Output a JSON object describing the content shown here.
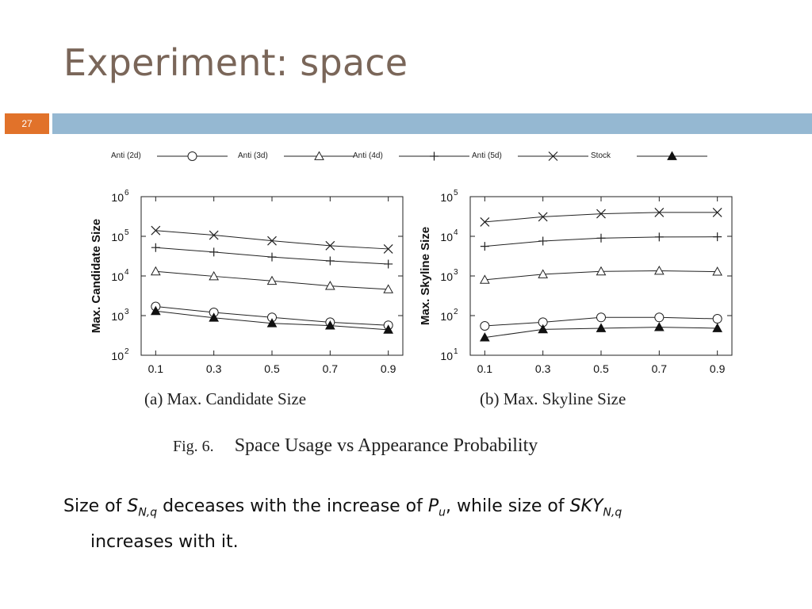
{
  "slide": {
    "title": "Experiment: space",
    "page_number": "27"
  },
  "legend": [
    {
      "name": "Anti (2d)",
      "marker": "circle"
    },
    {
      "name": "Anti (3d)",
      "marker": "triangle"
    },
    {
      "name": "Anti (4d)",
      "marker": "plus"
    },
    {
      "name": "Anti (5d)",
      "marker": "cross"
    },
    {
      "name": "Stock",
      "marker": "filled-triangle"
    }
  ],
  "chart_data": [
    {
      "type": "line",
      "caption": "(a) Max. Candidate Size",
      "ylabel": "Max. Candidate Size",
      "xlabel": "",
      "y_scale": "log",
      "ylim": [
        100,
        1000000
      ],
      "y_ticks": [
        "10^2",
        "10^3",
        "10^4",
        "10^5",
        "10^6"
      ],
      "x": [
        0.1,
        0.3,
        0.5,
        0.7,
        0.9
      ],
      "x_tick_labels": [
        "0.1",
        "0.3",
        "0.5",
        "0.7",
        "0.9"
      ],
      "series": [
        {
          "name": "Anti (2d)",
          "values": [
            1700,
            1200,
            900,
            680,
            570
          ]
        },
        {
          "name": "Anti (3d)",
          "values": [
            13000,
            9800,
            7500,
            5600,
            4600
          ]
        },
        {
          "name": "Anti (4d)",
          "values": [
            52000,
            40000,
            30000,
            24000,
            20000
          ]
        },
        {
          "name": "Anti (5d)",
          "values": [
            140000,
            107000,
            77000,
            58000,
            48000
          ]
        },
        {
          "name": "Stock",
          "values": [
            1300,
            880,
            640,
            560,
            440
          ]
        }
      ]
    },
    {
      "type": "line",
      "caption": "(b) Max. Skyline Size",
      "ylabel": "Max. Skyline Size",
      "xlabel": "",
      "y_scale": "log",
      "ylim": [
        10,
        100000
      ],
      "y_ticks": [
        "10^1",
        "10^2",
        "10^3",
        "10^4",
        "10^5"
      ],
      "x": [
        0.1,
        0.3,
        0.5,
        0.7,
        0.9
      ],
      "x_tick_labels": [
        "0.1",
        "0.3",
        "0.5",
        "0.7",
        "0.9"
      ],
      "series": [
        {
          "name": "Anti (2d)",
          "values": [
            55,
            68,
            90,
            90,
            83
          ]
        },
        {
          "name": "Anti (3d)",
          "values": [
            800,
            1100,
            1300,
            1350,
            1280
          ]
        },
        {
          "name": "Anti (4d)",
          "values": [
            5600,
            7600,
            9000,
            9600,
            9700
          ]
        },
        {
          "name": "Anti (5d)",
          "values": [
            23000,
            31000,
            37000,
            40000,
            40000
          ]
        },
        {
          "name": "Stock",
          "values": [
            28,
            45,
            48,
            51,
            48
          ]
        }
      ]
    }
  ],
  "figure_caption": {
    "number": "Fig. 6.",
    "text": "Space Usage vs Appearance Probability"
  },
  "body": {
    "t1": "Size of ",
    "s1": "S",
    "s1_sub": "N,q",
    "t2": " deceases with the increase of ",
    "p": "P",
    "p_sub": "u",
    "t3": ", while size of ",
    "sky": "SKY",
    "sky_sub": "N,q",
    "t4": "increases with it."
  },
  "colors": {
    "title": "#7a6659",
    "band": "#95b8d2",
    "badge": "#e1722a"
  }
}
